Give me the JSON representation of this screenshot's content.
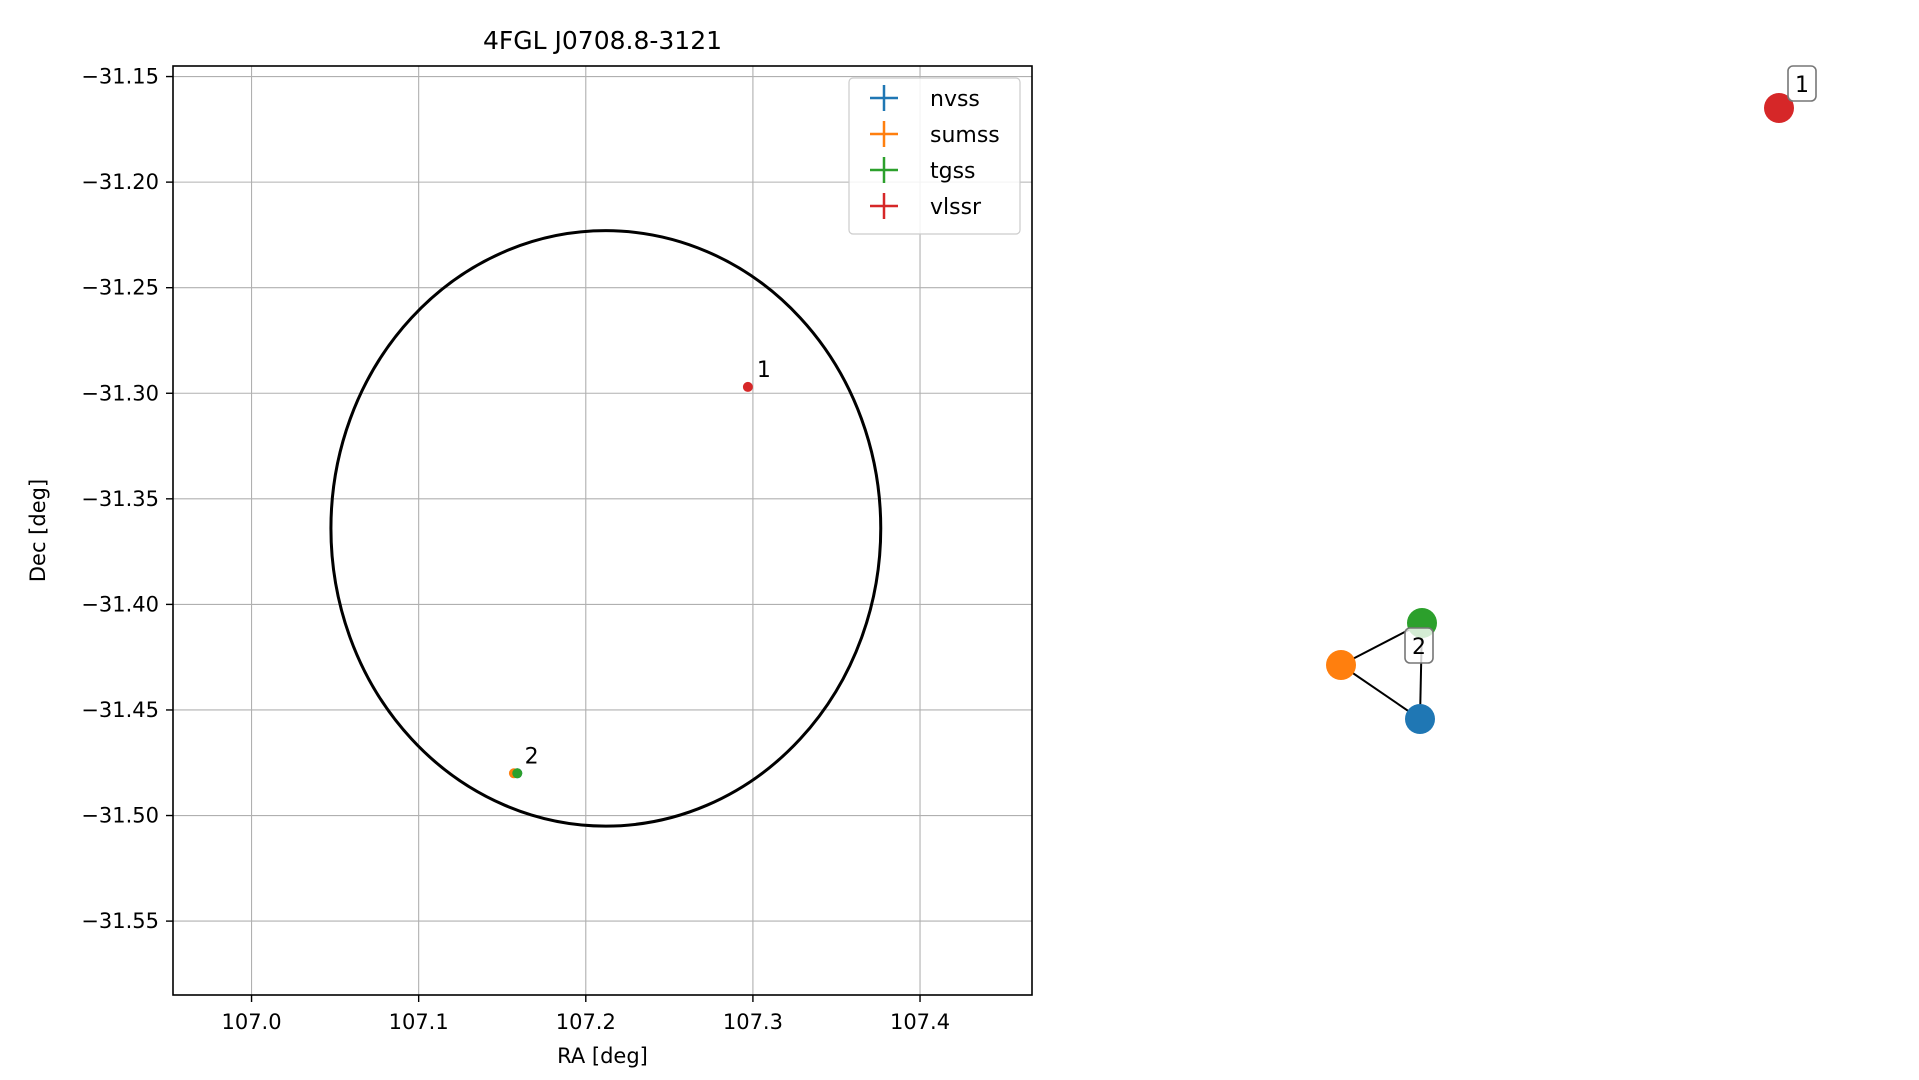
{
  "chart_data": [
    {
      "type": "scatter",
      "title": "4FGL J0708.8-3121",
      "xlabel": "RA [deg]",
      "ylabel": "Dec [deg]",
      "xlim": [
        106.953,
        107.467
      ],
      "ylim": [
        -31.585,
        -31.145
      ],
      "xticks": [
        107.0,
        107.1,
        107.2,
        107.3,
        107.4
      ],
      "xtick_labels": [
        "107.0",
        "107.1",
        "107.2",
        "107.3",
        "107.4"
      ],
      "yticks": [
        -31.15,
        -31.2,
        -31.25,
        -31.3,
        -31.35,
        -31.4,
        -31.45,
        -31.5,
        -31.55
      ],
      "ytick_labels": [
        "−31.15",
        "−31.20",
        "−31.25",
        "−31.30",
        "−31.35",
        "−31.40",
        "−31.45",
        "−31.50",
        "−31.55"
      ],
      "grid": true,
      "legend_position": "top-right",
      "series": [
        {
          "name": "nvss",
          "color": "#1f77b4",
          "points": [
            {
              "x": 107.159,
              "y": -31.48
            }
          ]
        },
        {
          "name": "sumss",
          "color": "#ff7f0e",
          "points": [
            {
              "x": 107.157,
              "y": -31.48
            }
          ]
        },
        {
          "name": "tgss",
          "color": "#2ca02c",
          "points": [
            {
              "x": 107.159,
              "y": -31.48
            }
          ]
        },
        {
          "name": "vlssr",
          "color": "#d62728",
          "points": [
            {
              "x": 107.297,
              "y": -31.297
            }
          ]
        }
      ],
      "ellipse": {
        "center": [
          107.212,
          -31.364
        ],
        "semi_axes": [
          0.1645,
          0.141
        ],
        "color": "#000000"
      },
      "annotations": [
        {
          "text": "1",
          "x": 107.297,
          "y": -31.297
        },
        {
          "text": "2",
          "x": 107.158,
          "y": -31.48
        }
      ]
    },
    {
      "type": "network",
      "nodes": [
        {
          "id": "vlssr",
          "color": "#d62728"
        },
        {
          "id": "tgss",
          "color": "#2ca02c"
        },
        {
          "id": "sumss",
          "color": "#ff7f0e"
        },
        {
          "id": "nvss",
          "color": "#1f77b4"
        }
      ],
      "edges": [
        [
          "tgss",
          "sumss"
        ],
        [
          "tgss",
          "nvss"
        ],
        [
          "sumss",
          "nvss"
        ]
      ],
      "group_labels": [
        {
          "text": "1",
          "members": [
            "vlssr"
          ]
        },
        {
          "text": "2",
          "members": [
            "tgss",
            "sumss",
            "nvss"
          ]
        }
      ]
    }
  ]
}
